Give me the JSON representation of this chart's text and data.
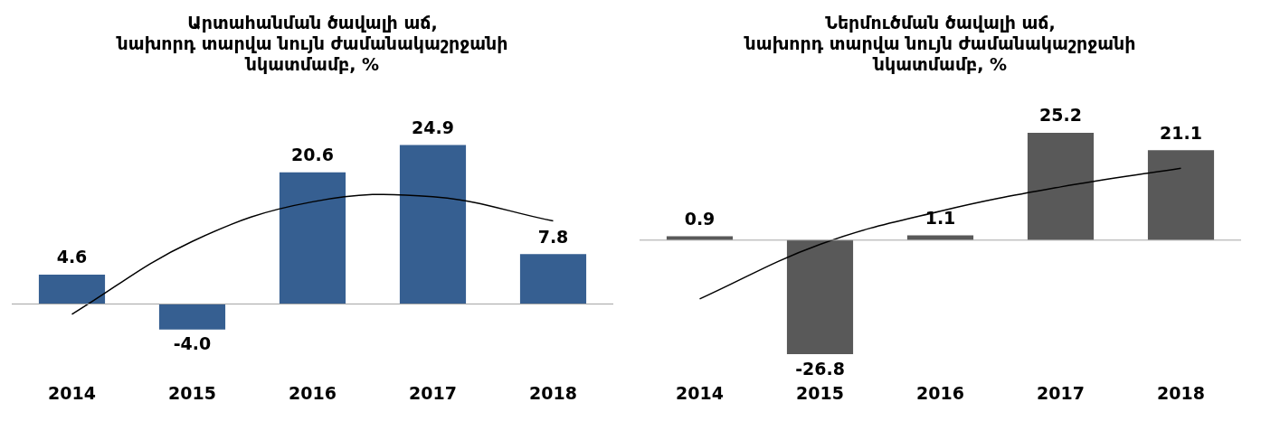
{
  "chart_data": [
    {
      "type": "bar",
      "title": "Արտահանման ծավալի աճ,\nնախորդ տարվա նույն ժամանակաշրջանի\nնկատմամբ, %",
      "categories": [
        "2014",
        "2015",
        "2016",
        "2017",
        "2018"
      ],
      "series": [
        {
          "color": "#365f91",
          "values": [
            4.6,
            -4.0,
            20.6,
            24.9,
            7.8
          ],
          "value_labels": [
            "4.6",
            "-4.0",
            "20.6",
            "24.9",
            "7.8"
          ]
        },
        {
          "type": "line",
          "color": "#000000",
          "values": [
            -1.6,
            9.8,
            16.0,
            16.8,
            13.0
          ]
        }
      ],
      "legend": false,
      "grid": false
    },
    {
      "type": "bar",
      "title": "Ներմուծման ծավալի աճ,\nնախորդ տարվա նույն ժամանակաշրջանի\nնկատմամբ, %",
      "categories": [
        "2014",
        "2015",
        "2016",
        "2017",
        "2018"
      ],
      "series": [
        {
          "color": "#595959",
          "values": [
            0.9,
            -26.8,
            1.1,
            25.2,
            21.1
          ],
          "value_labels": [
            "0.9",
            "-26.8",
            "1.1",
            "25.2",
            "21.1"
          ]
        },
        {
          "type": "line",
          "color": "#000000",
          "values": [
            -13.8,
            -1.0,
            6.8,
            12.5,
            16.9
          ]
        }
      ],
      "legend": false,
      "grid": false
    }
  ]
}
